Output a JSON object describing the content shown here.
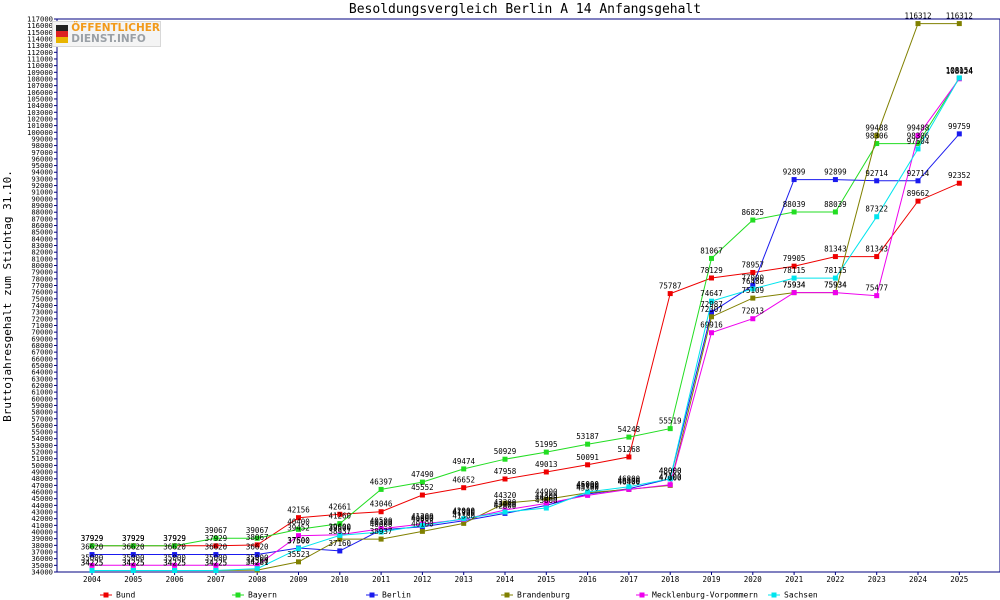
{
  "logo": {
    "line1": "ÖFFENTLICHER",
    "line2": "DIENST.INFO"
  },
  "chart_data": {
    "type": "line",
    "title": "Besoldungsvergleich Berlin A 14 Anfangsgehalt",
    "xlabel": "",
    "ylabel": "Bruttojahresgehalt zum Stichtag 31.10.",
    "ylim": [
      34000,
      117000
    ],
    "ytick_step": 1000,
    "grid": false,
    "legend_position": "bottom",
    "x": [
      "2004",
      "2005",
      "2006",
      "2007",
      "2008",
      "2009",
      "2010",
      "2011",
      "2012",
      "2013",
      "2014",
      "2015",
      "2016",
      "2017",
      "2018",
      "2019",
      "2020",
      "2021",
      "2022",
      "2023",
      "2024",
      "2025"
    ],
    "series": [
      {
        "name": "Bund",
        "color": "#ee0000",
        "values": [
          37929,
          37929,
          37929,
          37929,
          38067,
          42156,
          42661,
          43046,
          45552,
          46652,
          47958,
          49013,
          50091,
          51268,
          75787,
          78129,
          78957,
          79905,
          81343,
          81343,
          89662,
          92352
        ]
      },
      {
        "name": "Bayern",
        "color": "#22dd22",
        "values": [
          37929,
          37929,
          37929,
          39067,
          39067,
          40400,
          41260,
          46397,
          47490,
          49474,
          50929,
          51995,
          53187,
          54248,
          55519,
          81067,
          86825,
          88039,
          88039,
          98306,
          98306,
          108154
        ]
      },
      {
        "name": "Berlin",
        "color": "#1a1aee",
        "values": [
          36620,
          36620,
          36620,
          36620,
          36620,
          37600,
          37160,
          40320,
          40800,
          41700,
          42800,
          44000,
          45700,
          46500,
          48000,
          72987,
          77000,
          92899,
          92899,
          92714,
          92714,
          99759
        ]
      },
      {
        "name": "Brandenburg",
        "color": "#808000",
        "values": [
          34225,
          34225,
          34225,
          34225,
          34281,
          35523,
          38937,
          38937,
          40100,
          41300,
          44320,
          44900,
          45900,
          46400,
          47000,
          72307,
          75109,
          75934,
          75934,
          99488,
          116312,
          116312
        ]
      },
      {
        "name": "Mecklenburg-Vorpommern",
        "color": "#ee00ee",
        "values": [
          35000,
          35000,
          35000,
          35000,
          35000,
          39452,
          39600,
          40500,
          41200,
          41900,
          43300,
          44300,
          45500,
          46400,
          47100,
          69916,
          72013,
          75934,
          75934,
          75477,
          99488,
          108024
        ]
      },
      {
        "name": "Sachsen",
        "color": "#00e5ee",
        "values": [
          34225,
          34225,
          34225,
          34225,
          34500,
          37500,
          39500,
          40000,
          41000,
          42000,
          43000,
          43600,
          46000,
          46800,
          48000,
          74647,
          76486,
          78115,
          78115,
          87322,
          97504,
          108154
        ]
      }
    ]
  }
}
